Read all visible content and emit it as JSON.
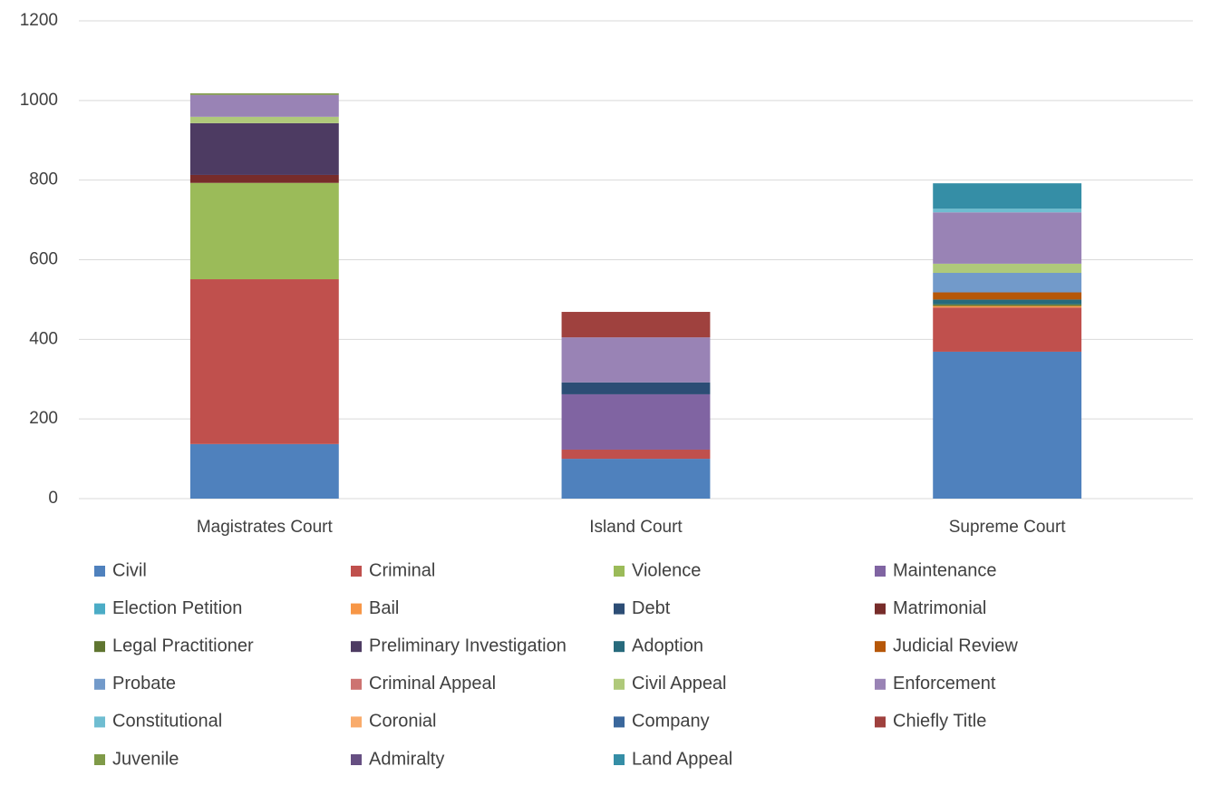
{
  "chart_data": {
    "type": "bar",
    "stacked": true,
    "categories": [
      "Magistrates Court",
      "Island Court",
      "Supreme Court"
    ],
    "ylim": [
      0,
      1200
    ],
    "yticks": [
      0,
      200,
      400,
      600,
      800,
      1000,
      1200
    ],
    "grid": true,
    "legend": "bottom",
    "series": [
      {
        "name": "Civil",
        "color": "#4f81bd",
        "values": [
          137,
          100,
          369
        ]
      },
      {
        "name": "Criminal",
        "color": "#c0504d",
        "values": [
          414,
          23,
          111
        ]
      },
      {
        "name": "Violence",
        "color": "#9bbb59",
        "values": [
          242,
          0,
          0
        ]
      },
      {
        "name": "Maintenance",
        "color": "#8064a2",
        "values": [
          0,
          139,
          0
        ]
      },
      {
        "name": "Election Petition",
        "color": "#4bacc6",
        "values": [
          0,
          0,
          0
        ]
      },
      {
        "name": "Bail",
        "color": "#f79646",
        "values": [
          0,
          0,
          4
        ]
      },
      {
        "name": "Debt",
        "color": "#2c4d75",
        "values": [
          0,
          30,
          0
        ]
      },
      {
        "name": "Matrimonial",
        "color": "#772c2a",
        "values": [
          20,
          0,
          0
        ]
      },
      {
        "name": "Legal Practitioner",
        "color": "#5f7530",
        "values": [
          0,
          0,
          4
        ]
      },
      {
        "name": "Preliminary Investigation",
        "color": "#4d3b62",
        "values": [
          130,
          0,
          0
        ]
      },
      {
        "name": "Adoption",
        "color": "#276a7c",
        "values": [
          0,
          0,
          12
        ]
      },
      {
        "name": "Judicial Review",
        "color": "#b65708",
        "values": [
          0,
          0,
          18
        ]
      },
      {
        "name": "Probate",
        "color": "#729aca",
        "values": [
          0,
          0,
          49
        ]
      },
      {
        "name": "Criminal Appeal",
        "color": "#cd7371",
        "values": [
          0,
          0,
          0
        ]
      },
      {
        "name": "Civil Appeal",
        "color": "#afc97a",
        "values": [
          16,
          0,
          23
        ]
      },
      {
        "name": "Enforcement",
        "color": "#9983b5",
        "values": [
          55,
          113,
          129
        ]
      },
      {
        "name": "Constitutional",
        "color": "#6fbdd1",
        "values": [
          0,
          0,
          9
        ]
      },
      {
        "name": "Coronial",
        "color": "#f9ab6b",
        "values": [
          0,
          0,
          0
        ]
      },
      {
        "name": "Company",
        "color": "#3a679c",
        "values": [
          0,
          0,
          0
        ]
      },
      {
        "name": "Chiefly Title",
        "color": "#9f413e",
        "values": [
          0,
          64,
          0
        ]
      },
      {
        "name": "Juvenile",
        "color": "#7f9a48",
        "values": [
          4,
          0,
          0
        ]
      },
      {
        "name": "Admiralty",
        "color": "#664f82",
        "values": [
          0,
          0,
          0
        ]
      },
      {
        "name": "Land Appeal",
        "color": "#358ea6",
        "values": [
          0,
          0,
          64
        ]
      }
    ]
  }
}
